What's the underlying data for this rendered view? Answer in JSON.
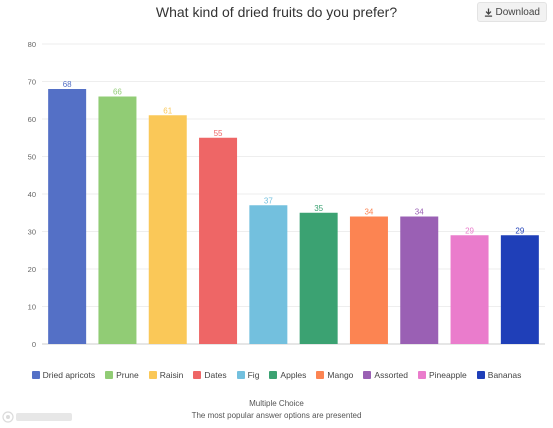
{
  "header": {
    "download_label": "Download"
  },
  "chart_data": {
    "type": "bar",
    "title": "What kind of dried fruits do you prefer?",
    "categories": [
      "Dried apricots",
      "Prune",
      "Raisin",
      "Dates",
      "Fig",
      "Apples",
      "Mango",
      "Assorted",
      "Pineapple",
      "Bananas"
    ],
    "values": [
      68,
      66,
      61,
      55,
      37,
      35,
      34,
      34,
      29,
      29
    ],
    "colors": [
      "#5470c6",
      "#91cc75",
      "#fac858",
      "#ee6666",
      "#73c0de",
      "#3ba272",
      "#fc8452",
      "#9a60b4",
      "#ea7ccc",
      "#1f3fb8"
    ],
    "ylim": [
      0,
      80
    ],
    "yticks": [
      0,
      10,
      20,
      30,
      40,
      50,
      60,
      70,
      80
    ],
    "grid": "horizontal",
    "legend_position": "bottom"
  },
  "footer": {
    "question_type": "Multiple Choice",
    "note": "The most popular answer options are presented"
  }
}
